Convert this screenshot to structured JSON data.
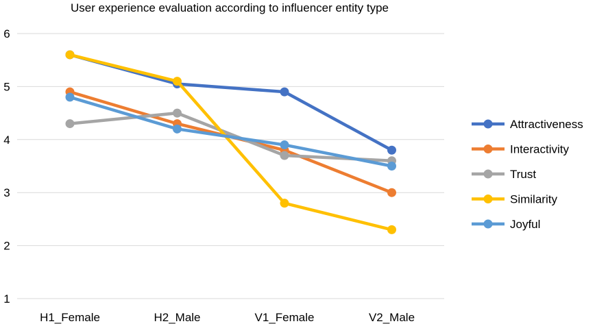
{
  "chart_data": {
    "type": "line",
    "title": "User experience evaluation according to influencer entity type",
    "xlabel": "",
    "ylabel": "",
    "categories": [
      "H1_Female",
      "H2_Male",
      "V1_Female",
      "V2_Male"
    ],
    "ylim": [
      1,
      6
    ],
    "yticks": [
      1,
      2,
      3,
      4,
      5,
      6
    ],
    "grid": true,
    "legend_position": "right",
    "series": [
      {
        "name": "Attractiveness",
        "color": "#4472C4",
        "values": [
          5.6,
          5.05,
          4.9,
          3.8
        ]
      },
      {
        "name": "Interactivity",
        "color": "#ED7D31",
        "values": [
          4.9,
          4.3,
          3.8,
          3.0
        ]
      },
      {
        "name": "Trust",
        "color": "#A5A5A5",
        "values": [
          4.3,
          4.5,
          3.7,
          3.6
        ]
      },
      {
        "name": "Similarity",
        "color": "#FFC000",
        "values": [
          5.6,
          5.1,
          2.8,
          2.3
        ]
      },
      {
        "name": "Joyful",
        "color": "#5B9BD5",
        "values": [
          4.8,
          4.2,
          3.9,
          3.5
        ]
      }
    ]
  }
}
